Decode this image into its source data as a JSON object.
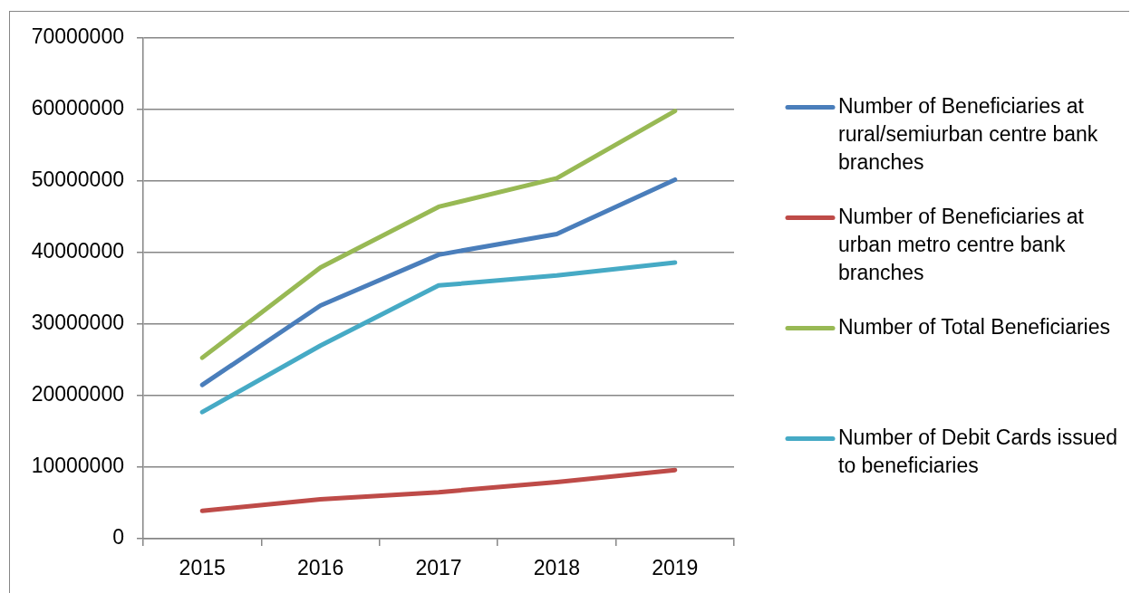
{
  "chart_data": {
    "type": "line",
    "categories": [
      "2015",
      "2016",
      "2017",
      "2018",
      "2019"
    ],
    "series": [
      {
        "name": "Number of Beneficiaries at rural/semiurban centre bank branches",
        "color": "#4a7ebb",
        "values": [
          21500000,
          32600000,
          39700000,
          42600000,
          50200000
        ]
      },
      {
        "name": "Number of Beneficiaries at urban metro centre bank branches",
        "color": "#be4b48",
        "values": [
          3900000,
          5500000,
          6500000,
          7900000,
          9600000
        ]
      },
      {
        "name": "Number of Total Beneficiaries",
        "color": "#98b954",
        "values": [
          25300000,
          37900000,
          46400000,
          50400000,
          59800000
        ]
      },
      {
        "name": "Number of Debit Cards issued to beneficiaries",
        "color": "#46aac5",
        "values": [
          17700000,
          27000000,
          35400000,
          36800000,
          38600000
        ]
      }
    ],
    "ylim": [
      0,
      70000000
    ],
    "yticks": [
      0,
      10000000,
      20000000,
      30000000,
      40000000,
      50000000,
      60000000,
      70000000
    ],
    "grid": "y",
    "legend": "right"
  }
}
